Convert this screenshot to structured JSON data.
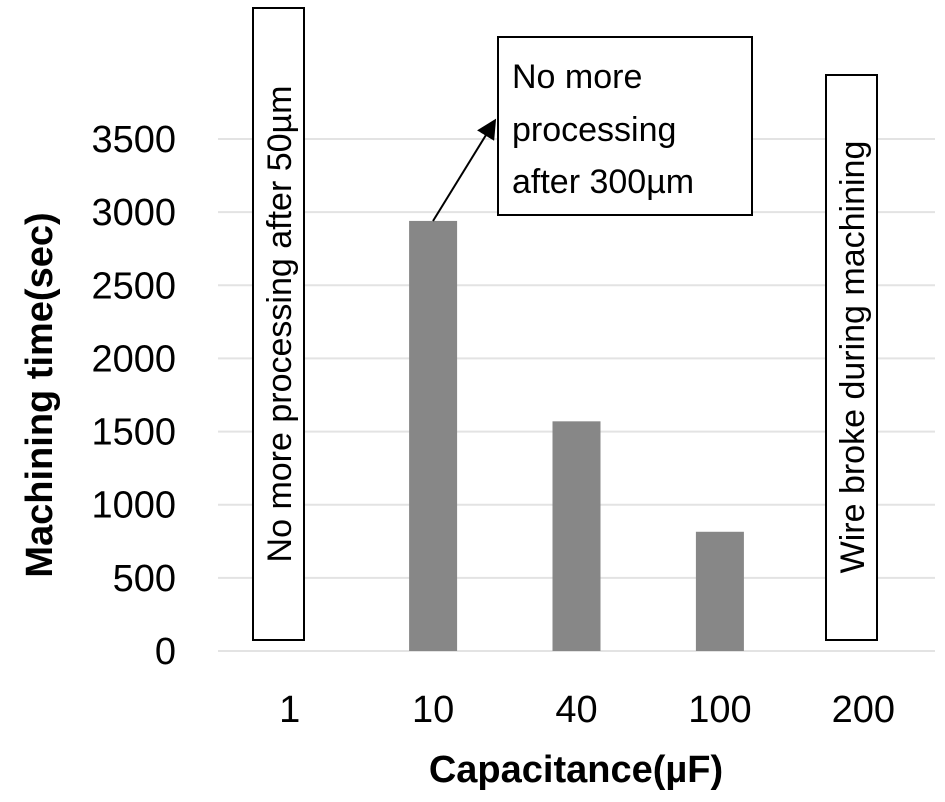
{
  "chart_data": {
    "type": "bar",
    "title": "",
    "xlabel": "Capacitance(µF)",
    "ylabel": "Machining time(sec)",
    "categories": [
      "1",
      "10",
      "40",
      "100",
      "200"
    ],
    "values": [
      null,
      2940,
      1570,
      815,
      null
    ],
    "ylim": [
      0,
      3500
    ],
    "yticks": [
      "0",
      "500",
      "1000",
      "1500",
      "2000",
      "2500",
      "3000",
      "3500"
    ],
    "grid": true,
    "bar_color": "#878787",
    "annotations": [
      {
        "category": "1",
        "text": "No more processing after 50µm",
        "orientation": "vertical"
      },
      {
        "category": "10",
        "lines": [
          "No more",
          "processing",
          "after 300µm"
        ],
        "orientation": "callout-arrow"
      },
      {
        "category": "200",
        "text": "Wire broke during machining",
        "orientation": "vertical"
      }
    ]
  }
}
